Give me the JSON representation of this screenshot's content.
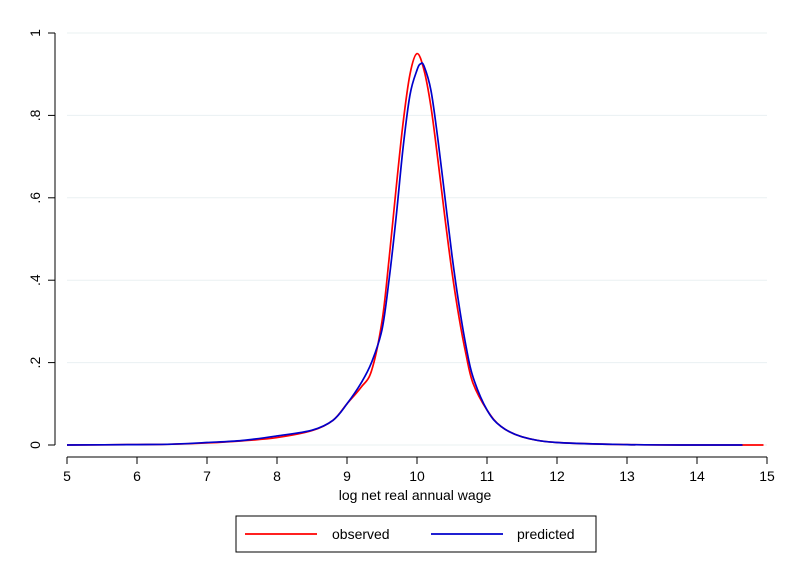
{
  "chart_data": {
    "type": "line",
    "title": "",
    "xlabel": "log net real annual wage",
    "ylabel": "",
    "xlim": [
      5,
      15
    ],
    "ylim": [
      0,
      1
    ],
    "x_ticks": [
      "5",
      "6",
      "7",
      "8",
      "9",
      "10",
      "11",
      "12",
      "13",
      "14",
      "15"
    ],
    "y_ticks": [
      "0",
      ".2",
      ".4",
      ".6",
      ".8",
      "1"
    ],
    "grid": "horizontal",
    "legend_position": "bottom",
    "series": [
      {
        "name": "observed",
        "color": "#ff0000",
        "points": [
          [
            5.0,
            0.0
          ],
          [
            6.0,
            0.001
          ],
          [
            6.5,
            0.002
          ],
          [
            7.0,
            0.005
          ],
          [
            7.5,
            0.01
          ],
          [
            8.0,
            0.018
          ],
          [
            8.5,
            0.035
          ],
          [
            8.8,
            0.06
          ],
          [
            9.0,
            0.1
          ],
          [
            9.2,
            0.14
          ],
          [
            9.35,
            0.18
          ],
          [
            9.5,
            0.3
          ],
          [
            9.6,
            0.45
          ],
          [
            9.7,
            0.62
          ],
          [
            9.8,
            0.78
          ],
          [
            9.9,
            0.9
          ],
          [
            10.0,
            0.95
          ],
          [
            10.1,
            0.91
          ],
          [
            10.2,
            0.82
          ],
          [
            10.3,
            0.69
          ],
          [
            10.4,
            0.55
          ],
          [
            10.5,
            0.42
          ],
          [
            10.6,
            0.31
          ],
          [
            10.7,
            0.22
          ],
          [
            10.8,
            0.15
          ],
          [
            11.0,
            0.085
          ],
          [
            11.2,
            0.045
          ],
          [
            11.5,
            0.02
          ],
          [
            12.0,
            0.006
          ],
          [
            13.0,
            0.001
          ],
          [
            14.0,
            0.0
          ],
          [
            14.95,
            0.0
          ]
        ]
      },
      {
        "name": "predicted",
        "color": "#0000cc",
        "points": [
          [
            5.0,
            0.0
          ],
          [
            6.0,
            0.001
          ],
          [
            6.5,
            0.002
          ],
          [
            7.0,
            0.006
          ],
          [
            7.5,
            0.011
          ],
          [
            8.0,
            0.022
          ],
          [
            8.5,
            0.036
          ],
          [
            8.8,
            0.06
          ],
          [
            9.0,
            0.1
          ],
          [
            9.2,
            0.15
          ],
          [
            9.35,
            0.2
          ],
          [
            9.5,
            0.28
          ],
          [
            9.6,
            0.4
          ],
          [
            9.7,
            0.55
          ],
          [
            9.8,
            0.72
          ],
          [
            9.9,
            0.85
          ],
          [
            10.0,
            0.91
          ],
          [
            10.05,
            0.925
          ],
          [
            10.1,
            0.92
          ],
          [
            10.2,
            0.86
          ],
          [
            10.3,
            0.74
          ],
          [
            10.4,
            0.6
          ],
          [
            10.5,
            0.46
          ],
          [
            10.6,
            0.34
          ],
          [
            10.7,
            0.24
          ],
          [
            10.8,
            0.165
          ],
          [
            11.0,
            0.085
          ],
          [
            11.2,
            0.045
          ],
          [
            11.5,
            0.02
          ],
          [
            12.0,
            0.006
          ],
          [
            13.0,
            0.001
          ],
          [
            14.0,
            0.0
          ],
          [
            14.65,
            0.0
          ]
        ]
      }
    ]
  }
}
